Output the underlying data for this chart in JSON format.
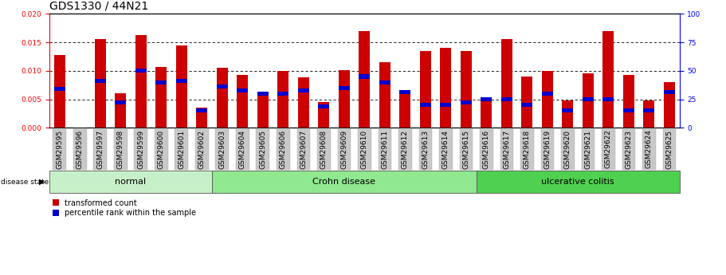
{
  "title": "GDS1330 / 44N21",
  "samples": [
    "GSM29595",
    "GSM29596",
    "GSM29597",
    "GSM29598",
    "GSM29599",
    "GSM29600",
    "GSM29601",
    "GSM29602",
    "GSM29603",
    "GSM29604",
    "GSM29605",
    "GSM29606",
    "GSM29607",
    "GSM29608",
    "GSM29609",
    "GSM29610",
    "GSM29611",
    "GSM29612",
    "GSM29613",
    "GSM29614",
    "GSM29615",
    "GSM29616",
    "GSM29617",
    "GSM29618",
    "GSM29619",
    "GSM29620",
    "GSM29621",
    "GSM29622",
    "GSM29623",
    "GSM29624",
    "GSM29625"
  ],
  "transformed_count": [
    0.0128,
    0.0,
    0.0155,
    0.006,
    0.0163,
    0.0107,
    0.0144,
    0.0035,
    0.0105,
    0.0093,
    0.0063,
    0.01,
    0.0088,
    0.0045,
    0.0101,
    0.017,
    0.0115,
    0.0063,
    0.0135,
    0.014,
    0.0135,
    0.0048,
    0.0155,
    0.009,
    0.01,
    0.0048,
    0.0095,
    0.017,
    0.0093,
    0.0048,
    0.008
  ],
  "percentile_rank": [
    0.0068,
    0.0,
    0.0083,
    0.0045,
    0.01,
    0.008,
    0.0083,
    0.003,
    0.0073,
    0.0065,
    0.006,
    0.006,
    0.0065,
    0.0038,
    0.007,
    0.009,
    0.008,
    0.0063,
    0.004,
    0.004,
    0.0045,
    0.005,
    0.005,
    0.004,
    0.006,
    0.003,
    0.005,
    0.005,
    0.003,
    0.003,
    0.0063
  ],
  "groups": [
    {
      "label": "normal",
      "start": 0,
      "end": 7,
      "color": "#c8f0c8"
    },
    {
      "label": "Crohn disease",
      "start": 8,
      "end": 20,
      "color": "#90e890"
    },
    {
      "label": "ulcerative colitis",
      "start": 21,
      "end": 30,
      "color": "#50d050"
    }
  ],
  "bar_color_red": "#cc0000",
  "bar_color_blue": "#0000cc",
  "left_ylim": [
    0,
    0.02
  ],
  "right_ylim": [
    0,
    100
  ],
  "left_yticks": [
    0,
    0.005,
    0.01,
    0.015,
    0.02
  ],
  "right_yticks": [
    0,
    25,
    50,
    75,
    100
  ],
  "bar_width": 0.55,
  "blue_bar_height": 0.0007,
  "title_fontsize": 10,
  "tick_fontsize": 6.5,
  "group_label_fontsize": 8,
  "legend_fontsize": 7,
  "xtick_bg_color": "#c8c8c8",
  "disease_state_label": "disease state",
  "legend_labels": [
    "transformed count",
    "percentile rank within the sample"
  ]
}
